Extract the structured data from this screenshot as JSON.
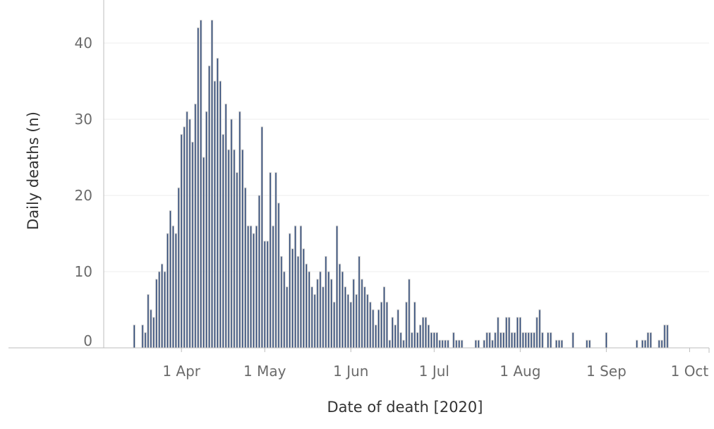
{
  "chart_data": {
    "type": "bar",
    "title": "",
    "xlabel": "Date of death [2020]",
    "ylabel": "Daily deaths (n)",
    "ylim": [
      0,
      40
    ],
    "yticks": [
      0,
      10,
      20,
      30,
      40
    ],
    "xticks": [
      {
        "date": "2020-04-01",
        "label": "1 Apr"
      },
      {
        "date": "2020-05-01",
        "label": "1 May"
      },
      {
        "date": "2020-06-01",
        "label": "1 Jun"
      },
      {
        "date": "2020-07-01",
        "label": "1 Jul"
      },
      {
        "date": "2020-08-01",
        "label": "1 Aug"
      },
      {
        "date": "2020-09-01",
        "label": "1 Sep"
      },
      {
        "date": "2020-10-01",
        "label": "1 Oct"
      }
    ],
    "x_range": [
      "2020-03-04",
      "2020-10-08"
    ],
    "grid": true,
    "bar_color": "#2f4a7a",
    "bar_outline_color": "#c8c8c8",
    "series": [
      {
        "values": [
          [
            "2020-03-15",
            3
          ],
          [
            "2020-03-18",
            3
          ],
          [
            "2020-03-19",
            2
          ],
          [
            "2020-03-20",
            7
          ],
          [
            "2020-03-21",
            5
          ],
          [
            "2020-03-22",
            4
          ],
          [
            "2020-03-23",
            9
          ],
          [
            "2020-03-24",
            10
          ],
          [
            "2020-03-25",
            11
          ],
          [
            "2020-03-26",
            10
          ],
          [
            "2020-03-27",
            15
          ],
          [
            "2020-03-28",
            18
          ],
          [
            "2020-03-29",
            16
          ],
          [
            "2020-03-30",
            15
          ],
          [
            "2020-03-31",
            21
          ],
          [
            "2020-04-01",
            28
          ],
          [
            "2020-04-02",
            29
          ],
          [
            "2020-04-03",
            31
          ],
          [
            "2020-04-04",
            30
          ],
          [
            "2020-04-05",
            27
          ],
          [
            "2020-04-06",
            32
          ],
          [
            "2020-04-07",
            42
          ],
          [
            "2020-04-08",
            43
          ],
          [
            "2020-04-09",
            25
          ],
          [
            "2020-04-10",
            31
          ],
          [
            "2020-04-11",
            37
          ],
          [
            "2020-04-12",
            43
          ],
          [
            "2020-04-13",
            35
          ],
          [
            "2020-04-14",
            38
          ],
          [
            "2020-04-15",
            35
          ],
          [
            "2020-04-16",
            28
          ],
          [
            "2020-04-17",
            32
          ],
          [
            "2020-04-18",
            26
          ],
          [
            "2020-04-19",
            30
          ],
          [
            "2020-04-20",
            26
          ],
          [
            "2020-04-21",
            23
          ],
          [
            "2020-04-22",
            31
          ],
          [
            "2020-04-23",
            26
          ],
          [
            "2020-04-24",
            21
          ],
          [
            "2020-04-25",
            16
          ],
          [
            "2020-04-26",
            16
          ],
          [
            "2020-04-27",
            15
          ],
          [
            "2020-04-28",
            16
          ],
          [
            "2020-04-29",
            20
          ],
          [
            "2020-04-30",
            29
          ],
          [
            "2020-05-01",
            14
          ],
          [
            "2020-05-02",
            14
          ],
          [
            "2020-05-03",
            23
          ],
          [
            "2020-05-04",
            16
          ],
          [
            "2020-05-05",
            23
          ],
          [
            "2020-05-06",
            19
          ],
          [
            "2020-05-07",
            12
          ],
          [
            "2020-05-08",
            10
          ],
          [
            "2020-05-09",
            8
          ],
          [
            "2020-05-10",
            15
          ],
          [
            "2020-05-11",
            13
          ],
          [
            "2020-05-12",
            16
          ],
          [
            "2020-05-13",
            12
          ],
          [
            "2020-05-14",
            16
          ],
          [
            "2020-05-15",
            13
          ],
          [
            "2020-05-16",
            11
          ],
          [
            "2020-05-17",
            10
          ],
          [
            "2020-05-18",
            8
          ],
          [
            "2020-05-19",
            7
          ],
          [
            "2020-05-20",
            9
          ],
          [
            "2020-05-21",
            10
          ],
          [
            "2020-05-22",
            8
          ],
          [
            "2020-05-23",
            12
          ],
          [
            "2020-05-24",
            10
          ],
          [
            "2020-05-25",
            9
          ],
          [
            "2020-05-26",
            6
          ],
          [
            "2020-05-27",
            16
          ],
          [
            "2020-05-28",
            11
          ],
          [
            "2020-05-29",
            10
          ],
          [
            "2020-05-30",
            8
          ],
          [
            "2020-05-31",
            7
          ],
          [
            "2020-06-01",
            6
          ],
          [
            "2020-06-02",
            9
          ],
          [
            "2020-06-03",
            7
          ],
          [
            "2020-06-04",
            12
          ],
          [
            "2020-06-05",
            9
          ],
          [
            "2020-06-06",
            8
          ],
          [
            "2020-06-07",
            7
          ],
          [
            "2020-06-08",
            6
          ],
          [
            "2020-06-09",
            5
          ],
          [
            "2020-06-10",
            3
          ],
          [
            "2020-06-11",
            5
          ],
          [
            "2020-06-12",
            6
          ],
          [
            "2020-06-13",
            8
          ],
          [
            "2020-06-14",
            6
          ],
          [
            "2020-06-15",
            1
          ],
          [
            "2020-06-16",
            4
          ],
          [
            "2020-06-17",
            3
          ],
          [
            "2020-06-18",
            5
          ],
          [
            "2020-06-19",
            2
          ],
          [
            "2020-06-20",
            1
          ],
          [
            "2020-06-21",
            6
          ],
          [
            "2020-06-22",
            9
          ],
          [
            "2020-06-23",
            2
          ],
          [
            "2020-06-24",
            6
          ],
          [
            "2020-06-25",
            2
          ],
          [
            "2020-06-26",
            3
          ],
          [
            "2020-06-27",
            4
          ],
          [
            "2020-06-28",
            4
          ],
          [
            "2020-06-29",
            3
          ],
          [
            "2020-06-30",
            2
          ],
          [
            "2020-07-01",
            2
          ],
          [
            "2020-07-02",
            2
          ],
          [
            "2020-07-03",
            1
          ],
          [
            "2020-07-04",
            1
          ],
          [
            "2020-07-05",
            1
          ],
          [
            "2020-07-06",
            1
          ],
          [
            "2020-07-08",
            2
          ],
          [
            "2020-07-09",
            1
          ],
          [
            "2020-07-10",
            1
          ],
          [
            "2020-07-11",
            1
          ],
          [
            "2020-07-16",
            1
          ],
          [
            "2020-07-17",
            1
          ],
          [
            "2020-07-19",
            1
          ],
          [
            "2020-07-20",
            2
          ],
          [
            "2020-07-21",
            2
          ],
          [
            "2020-07-22",
            1
          ],
          [
            "2020-07-23",
            2
          ],
          [
            "2020-07-24",
            4
          ],
          [
            "2020-07-25",
            2
          ],
          [
            "2020-07-26",
            2
          ],
          [
            "2020-07-27",
            4
          ],
          [
            "2020-07-28",
            4
          ],
          [
            "2020-07-29",
            2
          ],
          [
            "2020-07-30",
            2
          ],
          [
            "2020-07-31",
            4
          ],
          [
            "2020-08-01",
            4
          ],
          [
            "2020-08-02",
            2
          ],
          [
            "2020-08-03",
            2
          ],
          [
            "2020-08-04",
            2
          ],
          [
            "2020-08-05",
            2
          ],
          [
            "2020-08-06",
            2
          ],
          [
            "2020-08-07",
            4
          ],
          [
            "2020-08-08",
            5
          ],
          [
            "2020-08-09",
            2
          ],
          [
            "2020-08-11",
            2
          ],
          [
            "2020-08-12",
            2
          ],
          [
            "2020-08-14",
            1
          ],
          [
            "2020-08-15",
            1
          ],
          [
            "2020-08-16",
            1
          ],
          [
            "2020-08-20",
            2
          ],
          [
            "2020-08-25",
            1
          ],
          [
            "2020-08-26",
            1
          ],
          [
            "2020-09-01",
            2
          ],
          [
            "2020-09-12",
            1
          ],
          [
            "2020-09-14",
            1
          ],
          [
            "2020-09-15",
            1
          ],
          [
            "2020-09-16",
            2
          ],
          [
            "2020-09-17",
            2
          ],
          [
            "2020-09-20",
            1
          ],
          [
            "2020-09-21",
            1
          ],
          [
            "2020-09-22",
            3
          ],
          [
            "2020-09-23",
            3
          ]
        ]
      }
    ]
  }
}
